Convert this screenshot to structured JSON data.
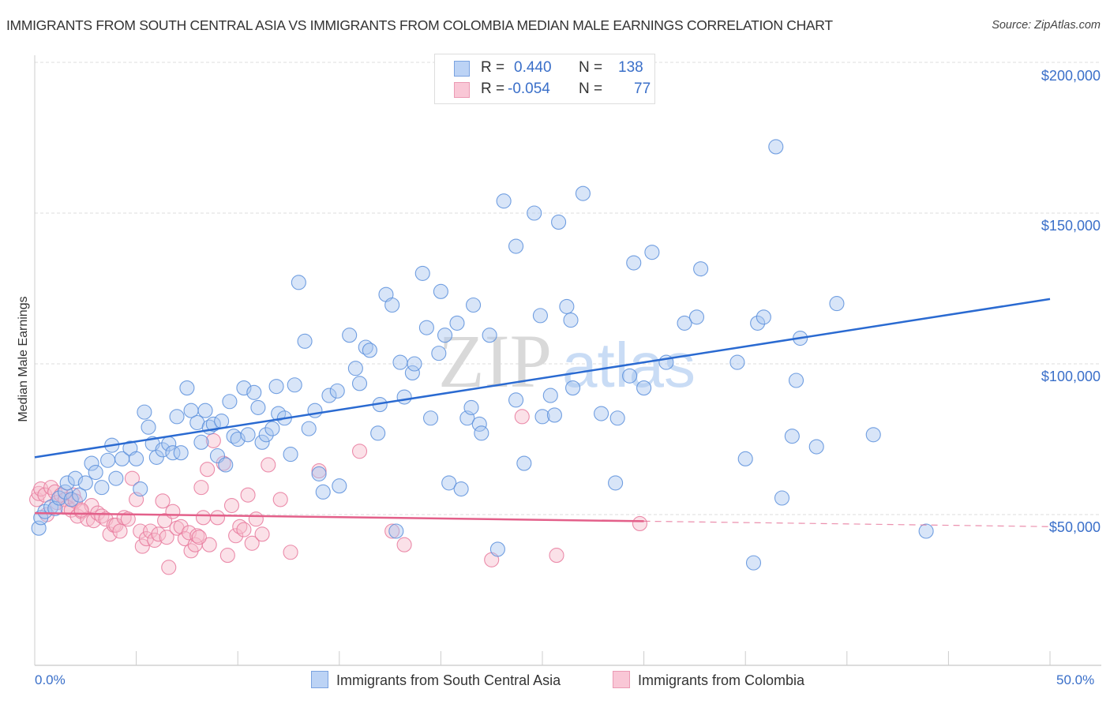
{
  "chart_data": {
    "type": "scatter",
    "title": "IMMIGRANTS FROM SOUTH CENTRAL ASIA VS IMMIGRANTS FROM COLOMBIA MEDIAN MALE EARNINGS CORRELATION CHART",
    "source": "Source: ZipAtlas.com",
    "xlabel": "",
    "ylabel": "Median Male Earnings",
    "xlim": [
      0,
      50
    ],
    "ylim": [
      0,
      205000
    ],
    "x_tick_labels": {
      "min": "0.0%",
      "max": "50.0%"
    },
    "y_ticks": [
      {
        "value": 50000,
        "label": "$50,000"
      },
      {
        "value": 100000,
        "label": "$100,000"
      },
      {
        "value": 150000,
        "label": "$150,000"
      },
      {
        "value": 200000,
        "label": "$200,000"
      }
    ],
    "grid": true,
    "watermark": {
      "part1": "ZIP",
      "part2": "atlas"
    },
    "legend_top": [
      {
        "swatch": "blue",
        "r_label": "R =",
        "r_value": "0.440",
        "n_label": "N =",
        "n_value": "138"
      },
      {
        "swatch": "pink",
        "r_label": "R =",
        "r_value": "-0.054",
        "n_label": "N =",
        "n_value": "77"
      }
    ],
    "series": [
      {
        "name": "Immigrants from South Central Asia",
        "color": "#5b8fdc",
        "fill": "#a9c6f0",
        "trend": {
          "x0": 0,
          "y0": 69000,
          "x1": 50,
          "y1": 121500,
          "dashed_from": null
        },
        "points": [
          [
            0.2,
            45500
          ],
          [
            0.3,
            49000
          ],
          [
            0.5,
            51000
          ],
          [
            0.8,
            52500
          ],
          [
            1.0,
            52000
          ],
          [
            1.2,
            55500
          ],
          [
            1.5,
            57500
          ],
          [
            1.6,
            60500
          ],
          [
            1.8,
            55000
          ],
          [
            2.0,
            62000
          ],
          [
            2.2,
            56500
          ],
          [
            2.5,
            60500
          ],
          [
            2.8,
            67000
          ],
          [
            3.0,
            64000
          ],
          [
            3.3,
            59000
          ],
          [
            3.6,
            68000
          ],
          [
            3.8,
            73000
          ],
          [
            4.0,
            62000
          ],
          [
            4.3,
            68500
          ],
          [
            4.7,
            72000
          ],
          [
            5.0,
            68500
          ],
          [
            5.2,
            58500
          ],
          [
            5.4,
            84000
          ],
          [
            5.6,
            79000
          ],
          [
            5.8,
            73500
          ],
          [
            6.0,
            69000
          ],
          [
            6.3,
            71500
          ],
          [
            6.6,
            73500
          ],
          [
            6.8,
            70500
          ],
          [
            7.0,
            82500
          ],
          [
            7.2,
            70500
          ],
          [
            7.5,
            92000
          ],
          [
            7.7,
            84500
          ],
          [
            8.0,
            80500
          ],
          [
            8.2,
            74000
          ],
          [
            8.4,
            84500
          ],
          [
            8.6,
            79000
          ],
          [
            8.8,
            80000
          ],
          [
            9.0,
            69500
          ],
          [
            9.2,
            81000
          ],
          [
            9.4,
            66500
          ],
          [
            9.6,
            87500
          ],
          [
            9.8,
            76000
          ],
          [
            10.0,
            75000
          ],
          [
            10.3,
            92000
          ],
          [
            10.5,
            76500
          ],
          [
            10.8,
            90500
          ],
          [
            11.0,
            85500
          ],
          [
            11.2,
            74000
          ],
          [
            11.4,
            76500
          ],
          [
            11.7,
            78500
          ],
          [
            11.9,
            92500
          ],
          [
            12.0,
            83500
          ],
          [
            12.3,
            82000
          ],
          [
            12.6,
            70000
          ],
          [
            12.8,
            93000
          ],
          [
            13.0,
            127000
          ],
          [
            13.3,
            107500
          ],
          [
            13.5,
            78500
          ],
          [
            13.8,
            84500
          ],
          [
            14.0,
            63500
          ],
          [
            14.2,
            57500
          ],
          [
            14.5,
            89500
          ],
          [
            14.9,
            91000
          ],
          [
            15.0,
            59500
          ],
          [
            15.5,
            109500
          ],
          [
            15.8,
            98500
          ],
          [
            16.0,
            93500
          ],
          [
            16.3,
            105500
          ],
          [
            16.5,
            104500
          ],
          [
            16.9,
            77000
          ],
          [
            17.0,
            86500
          ],
          [
            17.3,
            123000
          ],
          [
            17.6,
            119500
          ],
          [
            17.8,
            44500
          ],
          [
            18.0,
            100500
          ],
          [
            18.2,
            89000
          ],
          [
            18.6,
            97000
          ],
          [
            18.7,
            100000
          ],
          [
            19.1,
            130000
          ],
          [
            19.3,
            112000
          ],
          [
            19.5,
            82000
          ],
          [
            19.9,
            103500
          ],
          [
            20.0,
            124000
          ],
          [
            20.2,
            109500
          ],
          [
            20.4,
            60500
          ],
          [
            20.8,
            113500
          ],
          [
            21.0,
            58500
          ],
          [
            21.3,
            82000
          ],
          [
            21.5,
            85500
          ],
          [
            21.6,
            119500
          ],
          [
            21.9,
            80000
          ],
          [
            22.0,
            77000
          ],
          [
            22.4,
            109500
          ],
          [
            22.8,
            38500
          ],
          [
            23.1,
            154000
          ],
          [
            23.7,
            139000
          ],
          [
            23.7,
            88000
          ],
          [
            24.1,
            67000
          ],
          [
            24.6,
            150000
          ],
          [
            24.9,
            116000
          ],
          [
            25.0,
            82500
          ],
          [
            25.4,
            89500
          ],
          [
            25.6,
            83000
          ],
          [
            25.8,
            147000
          ],
          [
            26.2,
            119000
          ],
          [
            26.4,
            114500
          ],
          [
            26.5,
            92000
          ],
          [
            27.0,
            156500
          ],
          [
            27.9,
            83500
          ],
          [
            28.6,
            60500
          ],
          [
            28.7,
            82000
          ],
          [
            29.3,
            96000
          ],
          [
            29.5,
            133500
          ],
          [
            30.0,
            92000
          ],
          [
            30.4,
            137000
          ],
          [
            31.1,
            100500
          ],
          [
            32.0,
            113500
          ],
          [
            32.6,
            115500
          ],
          [
            32.8,
            131500
          ],
          [
            35.0,
            68500
          ],
          [
            35.4,
            34000
          ],
          [
            35.6,
            113500
          ],
          [
            35.9,
            115500
          ],
          [
            36.5,
            172000
          ],
          [
            36.8,
            55500
          ],
          [
            37.3,
            76000
          ],
          [
            37.5,
            94500
          ],
          [
            37.7,
            108500
          ],
          [
            38.5,
            72500
          ],
          [
            39.5,
            120000
          ],
          [
            41.3,
            76500
          ],
          [
            43.9,
            44500
          ],
          [
            34.6,
            100500
          ]
        ]
      },
      {
        "name": "Immigrants from Colombia",
        "color": "#e8799c",
        "fill": "#f7bccd",
        "trend": {
          "x0": 0,
          "y0": 50500,
          "x1": 50,
          "y1": 46000,
          "dashed_from": 30
        },
        "points": [
          [
            0.1,
            55000
          ],
          [
            0.2,
            57000
          ],
          [
            0.3,
            58500
          ],
          [
            0.5,
            56500
          ],
          [
            0.6,
            50000
          ],
          [
            0.8,
            59000
          ],
          [
            1.0,
            57500
          ],
          [
            1.1,
            54000
          ],
          [
            1.3,
            56500
          ],
          [
            1.5,
            55000
          ],
          [
            1.6,
            52500
          ],
          [
            1.8,
            51500
          ],
          [
            1.9,
            56500
          ],
          [
            2.0,
            54500
          ],
          [
            2.1,
            49500
          ],
          [
            2.3,
            51000
          ],
          [
            2.6,
            48500
          ],
          [
            2.8,
            53000
          ],
          [
            2.9,
            48000
          ],
          [
            3.1,
            50500
          ],
          [
            3.3,
            49500
          ],
          [
            3.5,
            48500
          ],
          [
            3.7,
            43500
          ],
          [
            3.9,
            46500
          ],
          [
            4.0,
            46500
          ],
          [
            4.2,
            44500
          ],
          [
            4.4,
            49000
          ],
          [
            4.6,
            48500
          ],
          [
            4.8,
            62000
          ],
          [
            5.0,
            55000
          ],
          [
            5.2,
            44500
          ],
          [
            5.3,
            39500
          ],
          [
            5.5,
            42000
          ],
          [
            5.7,
            44500
          ],
          [
            5.9,
            41500
          ],
          [
            6.1,
            43500
          ],
          [
            6.3,
            54500
          ],
          [
            6.4,
            48000
          ],
          [
            6.5,
            42500
          ],
          [
            6.6,
            32500
          ],
          [
            6.8,
            51000
          ],
          [
            7.0,
            45500
          ],
          [
            7.2,
            46000
          ],
          [
            7.4,
            42000
          ],
          [
            7.6,
            44000
          ],
          [
            7.7,
            38000
          ],
          [
            7.9,
            40000
          ],
          [
            8.0,
            43000
          ],
          [
            8.2,
            59000
          ],
          [
            8.3,
            49000
          ],
          [
            8.5,
            65000
          ],
          [
            8.6,
            40000
          ],
          [
            8.8,
            74500
          ],
          [
            9.0,
            49000
          ],
          [
            9.3,
            67000
          ],
          [
            9.5,
            36500
          ],
          [
            9.7,
            53000
          ],
          [
            9.9,
            43000
          ],
          [
            10.1,
            46000
          ],
          [
            10.3,
            45000
          ],
          [
            10.5,
            56500
          ],
          [
            10.7,
            40500
          ],
          [
            10.9,
            48500
          ],
          [
            11.2,
            43500
          ],
          [
            11.5,
            66500
          ],
          [
            12.1,
            55000
          ],
          [
            12.6,
            37500
          ],
          [
            14.0,
            64500
          ],
          [
            16.0,
            71000
          ],
          [
            17.6,
            44500
          ],
          [
            18.2,
            40000
          ],
          [
            22.5,
            35000
          ],
          [
            24.0,
            82500
          ],
          [
            25.7,
            36500
          ],
          [
            29.8,
            47000
          ],
          [
            8.1,
            42500
          ],
          [
            2.3,
            51500
          ]
        ]
      }
    ]
  }
}
